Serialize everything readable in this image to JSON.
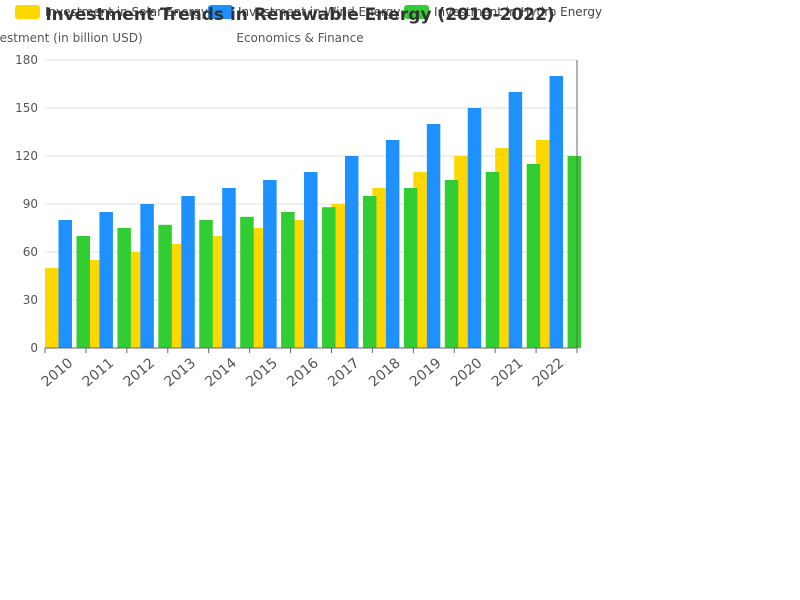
{
  "chart_data": {
    "type": "bar",
    "title": "Investment Trends in Renewable Energy (2010-2022)",
    "subtitle": "Economics & Finance",
    "ylabel": "Investment (in billion USD)",
    "xlabel": "",
    "categories": [
      "2010",
      "2011",
      "2012",
      "2013",
      "2014",
      "2015",
      "2016",
      "2017",
      "2018",
      "2019",
      "2020",
      "2021",
      "2022"
    ],
    "ylim": [
      0,
      180
    ],
    "yticks": [
      0,
      30,
      60,
      90,
      120,
      150,
      180
    ],
    "grid": true,
    "legend_position": "top",
    "series": [
      {
        "name": "Investment in Solar Energy",
        "color": "#FFD700",
        "values": [
          50,
          55,
          60,
          65,
          70,
          75,
          80,
          90,
          100,
          110,
          120,
          125,
          130
        ]
      },
      {
        "name": "Investment in Wind Energy",
        "color": "#1E90FF",
        "values": [
          80,
          85,
          90,
          95,
          100,
          105,
          110,
          120,
          130,
          140,
          150,
          160,
          170
        ]
      },
      {
        "name": "Investment in Hydro Energy",
        "color": "#32CD32",
        "values": [
          70,
          75,
          77,
          80,
          82,
          85,
          88,
          95,
          100,
          105,
          110,
          115,
          120
        ]
      }
    ]
  }
}
